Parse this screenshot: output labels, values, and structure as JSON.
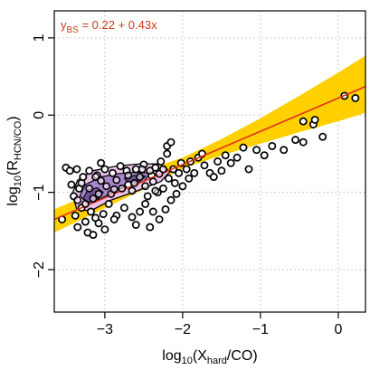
{
  "chart_data": {
    "type": "scatter",
    "title": "",
    "xlabel": {
      "prefix": "log",
      "base": "10",
      "open": "(X",
      "sub": "hard",
      "close": "/CO)"
    },
    "ylabel": {
      "prefix": "log",
      "base": "10",
      "open": "(R",
      "sub": "HCN/CO",
      "close": ")"
    },
    "xlim": [
      -3.65,
      0.35
    ],
    "ylim": [
      -2.55,
      1.35
    ],
    "xticks": [
      -3,
      -2,
      -1,
      0
    ],
    "yticks": [
      -2,
      -1,
      0,
      1
    ],
    "tick_labels_x": [
      "−3",
      "−2",
      "−1",
      "0"
    ],
    "tick_labels_y": [
      "−2",
      "−1",
      "0",
      "1"
    ],
    "grid": true,
    "fit": {
      "label_y": "y",
      "label_sub": "BS",
      "label_eq": " = 0.22 + 0.43x",
      "intercept": 0.22,
      "slope": 0.43,
      "line_color": "#e0301e",
      "band_color": "#ffd000",
      "band_lower": [
        [
          -3.65,
          -1.52
        ],
        [
          -2.5,
          -0.96
        ],
        [
          -2.0,
          -0.69
        ],
        [
          -1.5,
          -0.52
        ],
        [
          -1.0,
          -0.37
        ],
        [
          -0.5,
          -0.22
        ],
        [
          0.0,
          -0.08
        ],
        [
          0.35,
          0.03
        ]
      ],
      "band_upper": [
        [
          -3.65,
          -1.22
        ],
        [
          -2.5,
          -0.72
        ],
        [
          -2.0,
          -0.55
        ],
        [
          -1.5,
          -0.31
        ],
        [
          -1.0,
          -0.04
        ],
        [
          -0.5,
          0.25
        ],
        [
          0.0,
          0.55
        ],
        [
          0.35,
          0.77
        ]
      ]
    },
    "density": {
      "outer_color": "#ecc2ea",
      "mid_color": "#a886cc",
      "inner_color": "#6e5296",
      "outer": [
        [
          -3.42,
          -1.02
        ],
        [
          -3.35,
          -0.84
        ],
        [
          -3.15,
          -0.72
        ],
        [
          -2.85,
          -0.66
        ],
        [
          -2.55,
          -0.63
        ],
        [
          -2.3,
          -0.63
        ],
        [
          -2.16,
          -0.73
        ],
        [
          -2.28,
          -0.86
        ],
        [
          -2.58,
          -0.98
        ],
        [
          -2.92,
          -1.1
        ],
        [
          -3.18,
          -1.24
        ],
        [
          -3.36,
          -1.22
        ]
      ],
      "mid": [
        [
          -3.32,
          -1.04
        ],
        [
          -3.25,
          -0.9
        ],
        [
          -3.05,
          -0.8
        ],
        [
          -2.85,
          -0.76
        ],
        [
          -2.62,
          -0.74
        ],
        [
          -2.42,
          -0.75
        ],
        [
          -2.5,
          -0.86
        ],
        [
          -2.82,
          -0.96
        ],
        [
          -3.05,
          -1.08
        ],
        [
          -3.23,
          -1.14
        ]
      ],
      "inner1": [
        [
          -3.28,
          -1.08
        ],
        [
          -3.22,
          -0.97
        ],
        [
          -3.1,
          -0.94
        ],
        [
          -3.02,
          -1.0
        ],
        [
          -3.1,
          -1.1
        ],
        [
          -3.2,
          -1.13
        ]
      ],
      "inner2": [
        [
          -2.75,
          -0.82
        ],
        [
          -2.62,
          -0.78
        ],
        [
          -2.48,
          -0.79
        ],
        [
          -2.55,
          -0.86
        ],
        [
          -2.7,
          -0.87
        ]
      ]
    },
    "points_scattered": [
      [
        -3.55,
        -1.35
      ],
      [
        -3.5,
        -0.68
      ],
      [
        -3.45,
        -0.72
      ],
      [
        -3.43,
        -0.9
      ],
      [
        -3.4,
        -1.05
      ],
      [
        -3.38,
        -1.3
      ],
      [
        -3.36,
        -0.7
      ],
      [
        -3.35,
        -1.45
      ],
      [
        -3.3,
        -1.2
      ],
      [
        -3.28,
        -0.8
      ],
      [
        -3.25,
        -1.38
      ],
      [
        -3.22,
        -1.52
      ],
      [
        -3.2,
        -0.72
      ],
      [
        -3.18,
        -1.25
      ],
      [
        -3.15,
        -1.55
      ],
      [
        -3.12,
        -1.33
      ],
      [
        -3.1,
        -0.78
      ],
      [
        -3.08,
        -1.4
      ],
      [
        -3.05,
        -0.62
      ],
      [
        -3.02,
        -1.28
      ],
      [
        -3.0,
        -0.7
      ],
      [
        -2.95,
        -1.15
      ],
      [
        -2.9,
        -0.75
      ],
      [
        -2.85,
        -1.3
      ],
      [
        -2.8,
        -0.66
      ],
      [
        -2.75,
        -1.2
      ],
      [
        -2.7,
        -0.9
      ],
      [
        -2.65,
        -1.32
      ],
      [
        -2.6,
        -0.7
      ],
      [
        -2.55,
        -1.25
      ],
      [
        -2.5,
        -0.64
      ],
      [
        -2.45,
        -1.05
      ],
      [
        -2.42,
        -1.45
      ],
      [
        -2.4,
        -0.78
      ],
      [
        -2.38,
        -1.25
      ],
      [
        -2.35,
        -0.68
      ],
      [
        -2.32,
        -1.0
      ],
      [
        -2.3,
        -1.35
      ],
      [
        -2.28,
        -0.6
      ],
      [
        -2.25,
        -0.95
      ],
      [
        -2.22,
        -1.22
      ],
      [
        -2.2,
        -0.5
      ],
      [
        -2.18,
        -0.82
      ],
      [
        -2.15,
        -1.1
      ],
      [
        -2.12,
        -0.7
      ],
      [
        -2.1,
        -0.88
      ],
      [
        -2.08,
        -1.02
      ],
      [
        -2.05,
        -0.75
      ],
      [
        -2.2,
        -0.4
      ],
      [
        -2.02,
        -0.62
      ],
      [
        -2.0,
        -0.92
      ],
      [
        -1.95,
        -0.7
      ],
      [
        -1.9,
        -0.6
      ],
      [
        -1.85,
        -0.75
      ],
      [
        -1.8,
        -0.55
      ],
      [
        -1.72,
        -0.65
      ],
      [
        -1.65,
        -0.75
      ],
      [
        -1.55,
        -0.6
      ],
      [
        -1.5,
        -0.72
      ],
      [
        -1.45,
        -0.52
      ],
      [
        -1.38,
        -0.62
      ],
      [
        -1.3,
        -0.55
      ],
      [
        -1.22,
        -0.42
      ],
      [
        -1.15,
        -0.7
      ],
      [
        -1.05,
        -0.45
      ],
      [
        -0.95,
        -0.52
      ],
      [
        -0.85,
        -0.4
      ],
      [
        -0.7,
        -0.45
      ],
      [
        -0.55,
        -0.32
      ],
      [
        -0.45,
        -0.08
      ],
      [
        -0.32,
        -0.12
      ],
      [
        -0.3,
        -0.06
      ],
      [
        -0.2,
        -0.28
      ],
      [
        -0.45,
        -0.35
      ],
      [
        0.08,
        0.25
      ],
      [
        0.22,
        0.22
      ],
      [
        -1.6,
        -0.8
      ],
      [
        -2.6,
        -1.42
      ],
      [
        -2.48,
        -1.15
      ],
      [
        -3.33,
        -0.95
      ],
      [
        -2.72,
        -0.72
      ],
      [
        -1.92,
        -0.82
      ],
      [
        -2.88,
        -1.35
      ],
      [
        -3.0,
        -1.48
      ],
      [
        -2.15,
        -0.35
      ],
      [
        -1.75,
        -0.5
      ]
    ],
    "points_inner": [
      [
        -3.3,
        -0.88
      ],
      [
        -3.2,
        -0.95
      ],
      [
        -3.15,
        -1.08
      ],
      [
        -3.05,
        -0.85
      ],
      [
        -2.98,
        -0.92
      ],
      [
        -2.92,
        -1.02
      ],
      [
        -2.85,
        -0.84
      ],
      [
        -2.78,
        -0.95
      ],
      [
        -2.7,
        -0.78
      ],
      [
        -2.62,
        -0.88
      ],
      [
        -2.55,
        -0.8
      ],
      [
        -2.48,
        -0.92
      ],
      [
        -2.42,
        -0.72
      ],
      [
        -2.38,
        -0.86
      ],
      [
        -2.3,
        -0.76
      ],
      [
        -2.25,
        -0.7
      ],
      [
        -3.25,
        -1.15
      ],
      [
        -3.08,
        -1.02
      ],
      [
        -2.88,
        -0.96
      ],
      [
        -2.65,
        -0.98
      ],
      [
        -2.52,
        -0.7
      ],
      [
        -2.35,
        -0.98
      ],
      [
        -3.35,
        -1.1
      ],
      [
        -3.12,
        -0.8
      ]
    ]
  }
}
